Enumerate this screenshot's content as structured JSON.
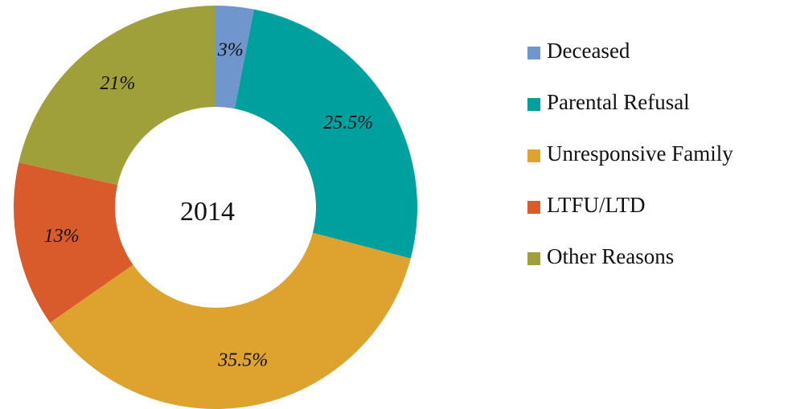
{
  "chart_data": {
    "type": "donut",
    "center_label": "2014",
    "categories": [
      "Deceased",
      "Parental Refusal",
      "Unresponsive Family",
      "LTFU/LTD",
      "Other Reasons"
    ],
    "values": [
      3,
      25.5,
      35.5,
      13,
      21
    ],
    "value_labels": [
      "3%",
      "25.5%",
      "35.5%",
      "13%",
      "21%"
    ],
    "colors": [
      "#6f97cd",
      "#00a09e",
      "#dea32f",
      "#d95a2b",
      "#a0a03a"
    ],
    "legend": "right"
  }
}
